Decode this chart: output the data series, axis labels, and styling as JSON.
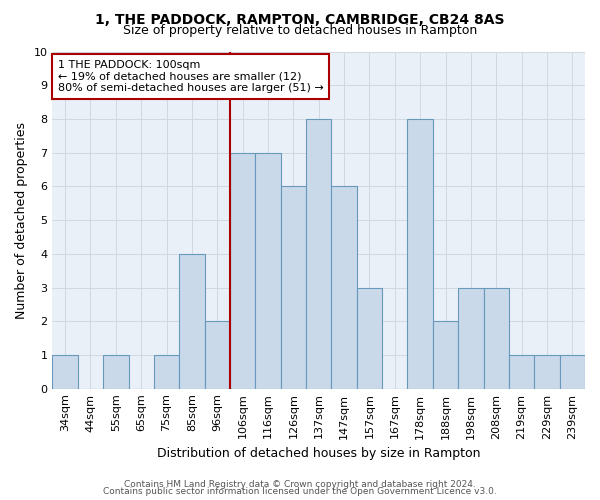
{
  "title": "1, THE PADDOCK, RAMPTON, CAMBRIDGE, CB24 8AS",
  "subtitle": "Size of property relative to detached houses in Rampton",
  "xlabel": "Distribution of detached houses by size in Rampton",
  "ylabel": "Number of detached properties",
  "footnote1": "Contains HM Land Registry data © Crown copyright and database right 2024.",
  "footnote2": "Contains public sector information licensed under the Open Government Licence v3.0.",
  "categories": [
    "34sqm",
    "44sqm",
    "55sqm",
    "65sqm",
    "75sqm",
    "85sqm",
    "96sqm",
    "106sqm",
    "116sqm",
    "126sqm",
    "137sqm",
    "147sqm",
    "157sqm",
    "167sqm",
    "178sqm",
    "188sqm",
    "198sqm",
    "208sqm",
    "219sqm",
    "229sqm",
    "239sqm"
  ],
  "values": [
    1,
    0,
    1,
    0,
    1,
    4,
    2,
    7,
    7,
    6,
    8,
    6,
    3,
    0,
    8,
    2,
    3,
    3,
    1,
    1,
    1
  ],
  "bar_color": "#c9d9ea",
  "bar_edge_color": "#6699bb",
  "grid_color": "#d0d8e0",
  "background_color": "#eaf0f8",
  "annotation_box_color": "#aa0000",
  "vline_color": "#aa0000",
  "vline_position": 6.5,
  "annotation_text": "1 THE PADDOCK: 100sqm\n← 19% of detached houses are smaller (12)\n80% of semi-detached houses are larger (51) →",
  "ylim": [
    0,
    10
  ],
  "yticks": [
    0,
    1,
    2,
    3,
    4,
    5,
    6,
    7,
    8,
    9,
    10
  ],
  "title_fontsize": 10,
  "subtitle_fontsize": 9,
  "ylabel_fontsize": 9,
  "xlabel_fontsize": 9,
  "tick_fontsize": 8,
  "annot_fontsize": 8
}
